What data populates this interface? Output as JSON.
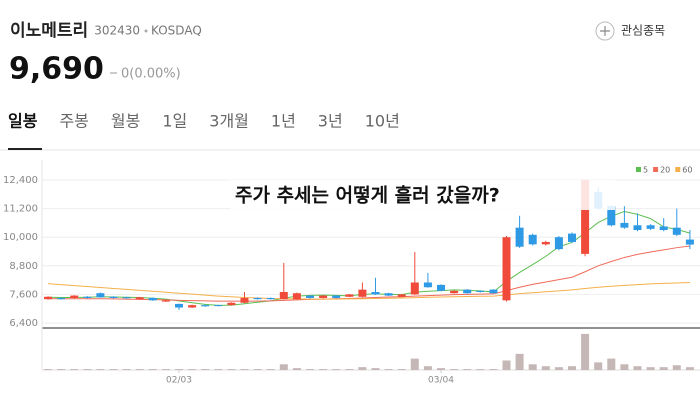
{
  "header": {
    "name": "이노메트리",
    "code": "302430",
    "market": "KOSDAQ",
    "watchlist": "관심종목",
    "price": "9,690",
    "change": "0(0.00%)"
  },
  "tabs": [
    "일봉",
    "주봉",
    "월봉",
    "1일",
    "3개월",
    "1년",
    "3년",
    "10년"
  ],
  "overlay": "주가 추세는 어떻게 흘러 갔을까?",
  "chart_data": {
    "type": "candlestick",
    "categories": [
      null,
      null,
      null,
      null,
      null,
      null,
      null,
      null,
      null,
      null,
      "02/03",
      null,
      null,
      null,
      null,
      null,
      null,
      null,
      null,
      null,
      null,
      null,
      null,
      null,
      null,
      null,
      null,
      null,
      null,
      null,
      "03/04",
      null,
      null,
      null,
      null,
      null,
      null,
      null,
      null,
      null,
      null,
      null,
      null,
      null,
      null,
      null,
      null,
      null,
      null,
      null
    ],
    "open": [
      7400,
      7450,
      7450,
      7500,
      7650,
      7500,
      7480,
      7400,
      7450,
      7300,
      7200,
      7050,
      7150,
      7150,
      7150,
      7250,
      7450,
      7450,
      7400,
      7400,
      7550,
      7450,
      7550,
      7500,
      7500,
      7700,
      7650,
      7500,
      7600,
      8100,
      8000,
      7650,
      7800,
      7750,
      7800,
      7350,
      10400,
      10100,
      9700,
      10000,
      10150,
      9300,
      11900,
      11300,
      10600,
      10500,
      10500,
      10450,
      10400,
      9900
    ],
    "high": [
      7520,
      7480,
      7570,
      7530,
      7680,
      7520,
      7500,
      7500,
      7470,
      7370,
      7220,
      7170,
      7170,
      7170,
      7270,
      7700,
      7480,
      7470,
      8920,
      7680,
      7570,
      7570,
      7570,
      7620,
      8100,
      8300,
      7670,
      7620,
      9380,
      8500,
      8020,
      7770,
      7820,
      7770,
      7820,
      10050,
      10900,
      10150,
      9850,
      10050,
      10200,
      12400,
      12100,
      11350,
      11300,
      11000,
      10550,
      10800,
      11200,
      10300
    ],
    "low": [
      7380,
      7380,
      7430,
      7430,
      7460,
      7430,
      7420,
      7380,
      7330,
      7280,
      6950,
      7030,
      7080,
      7100,
      7130,
      7230,
      7380,
      7380,
      7380,
      7380,
      7430,
      7430,
      7430,
      7480,
      7480,
      7580,
      7530,
      7480,
      7580,
      7880,
      7730,
      7630,
      7630,
      7680,
      7630,
      7300,
      9550,
      9650,
      9650,
      9450,
      9750,
      9200,
      11150,
      10450,
      10350,
      10250,
      10300,
      10250,
      10050,
      9500
    ],
    "close": [
      7500,
      7400,
      7550,
      7450,
      7480,
      7450,
      7440,
      7480,
      7350,
      7350,
      7050,
      7150,
      7100,
      7120,
      7250,
      7450,
      7400,
      7400,
      7700,
      7650,
      7450,
      7550,
      7450,
      7600,
      7800,
      7600,
      7550,
      7600,
      8100,
      7900,
      7750,
      7750,
      7650,
      7700,
      7650,
      10000,
      9600,
      9700,
      9800,
      9500,
      9800,
      12400,
      11200,
      10500,
      10400,
      10300,
      10350,
      10300,
      10100,
      9690
    ],
    "volume": [
      1,
      1,
      1,
      1,
      1,
      1,
      1,
      1,
      1,
      1,
      1,
      1,
      1,
      1,
      1,
      1,
      1,
      1,
      6,
      2,
      1,
      1,
      1,
      1,
      3,
      2,
      1,
      1,
      12,
      4,
      2,
      1,
      1,
      1,
      1,
      10,
      17,
      6,
      4,
      3,
      4,
      38,
      8,
      12,
      6,
      4,
      3,
      3,
      5,
      3
    ],
    "volume_ylim": [
      0,
      40
    ],
    "up_color": "#f04a3a",
    "down_color": "#2e9ae6",
    "volume_color": "#c6b7b7",
    "series": [
      {
        "name": "5",
        "color": "#5bbf4e",
        "values": [
          7480,
          7470,
          7470,
          7480,
          7500,
          7490,
          7480,
          7470,
          7440,
          7400,
          7330,
          7250,
          7180,
          7140,
          7150,
          7210,
          7270,
          7330,
          7440,
          7530,
          7560,
          7570,
          7560,
          7540,
          7600,
          7620,
          7600,
          7590,
          7690,
          7730,
          7760,
          7790,
          7770,
          7750,
          7700,
          8150,
          8520,
          8850,
          9200,
          9600,
          9780,
          10180,
          10620,
          10880,
          11080,
          10960,
          10780,
          10430,
          10330,
          10170
        ]
      },
      {
        "name": "20",
        "color": "#f06a5a",
        "values": [
          7420,
          7420,
          7420,
          7420,
          7420,
          7410,
          7400,
          7390,
          7380,
          7370,
          7350,
          7340,
          7330,
          7320,
          7320,
          7320,
          7320,
          7330,
          7350,
          7370,
          7390,
          7400,
          7420,
          7430,
          7450,
          7470,
          7490,
          7500,
          7530,
          7550,
          7570,
          7590,
          7600,
          7610,
          7620,
          7760,
          7900,
          8020,
          8120,
          8220,
          8320,
          8550,
          8800,
          8980,
          9150,
          9280,
          9380,
          9470,
          9560,
          9630
        ]
      },
      {
        "name": "60",
        "color": "#f5b04a",
        "values": [
          8050,
          8010,
          7970,
          7930,
          7890,
          7850,
          7810,
          7770,
          7730,
          7690,
          7650,
          7610,
          7570,
          7530,
          7500,
          7470,
          7450,
          7430,
          7420,
          7410,
          7400,
          7400,
          7400,
          7410,
          7420,
          7430,
          7440,
          7450,
          7460,
          7480,
          7490,
          7500,
          7510,
          7520,
          7530,
          7580,
          7630,
          7670,
          7710,
          7750,
          7790,
          7850,
          7900,
          7940,
          7980,
          8010,
          8040,
          8060,
          8080,
          8100
        ]
      }
    ],
    "ylim": [
      6400,
      13400
    ],
    "yticks": [
      {
        "value": 6400,
        "label": "6,400"
      },
      {
        "value": 7600,
        "label": "7,600"
      },
      {
        "value": 8800,
        "label": "8,800"
      },
      {
        "value": 10000,
        "label": "10,000"
      },
      {
        "value": 11200,
        "label": "11,200"
      },
      {
        "value": 12400,
        "label": "12,400"
      }
    ],
    "grid": true
  }
}
